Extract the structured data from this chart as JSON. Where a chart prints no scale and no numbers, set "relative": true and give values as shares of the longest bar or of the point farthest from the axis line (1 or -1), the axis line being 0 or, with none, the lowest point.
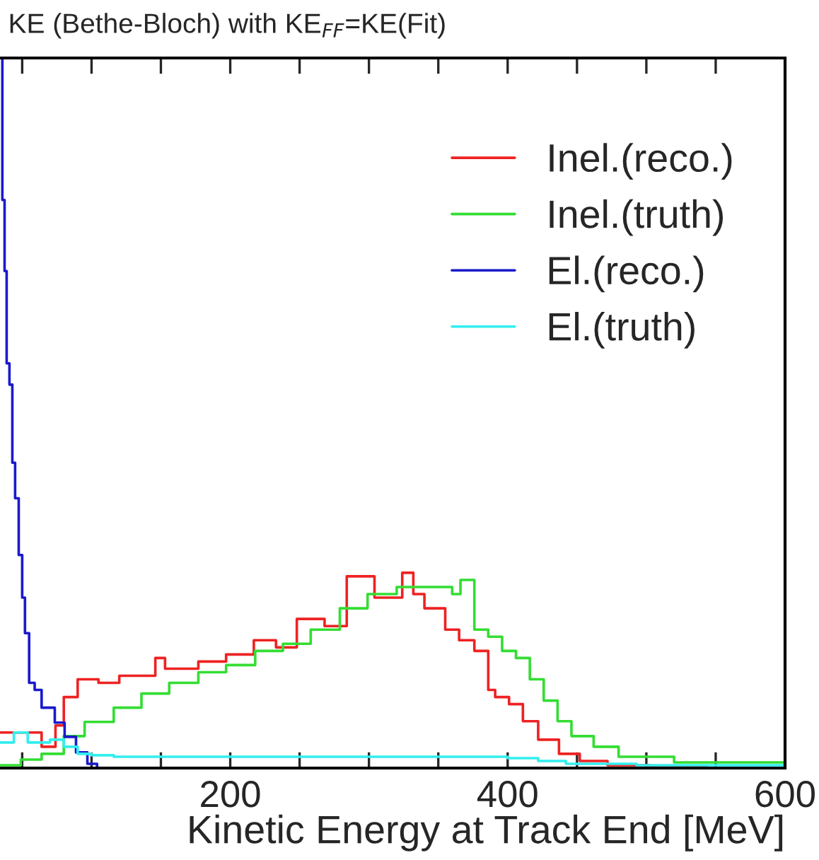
{
  "chart_data": {
    "type": "step",
    "title": "KE (Bethe-Bloch) with KE$_{FF}$=KE(Fit)",
    "xlabel": "Kinetic Energy at Track End [MeV]",
    "relative": true,
    "legend": "top right",
    "grid": false,
    "xlim": [
      34,
      600
    ],
    "xticks": [
      {
        "value": 50,
        "label": null
      },
      {
        "value": 100,
        "label": null
      },
      {
        "value": 150,
        "label": null
      },
      200,
      {
        "value": 250,
        "label": null
      },
      {
        "value": 300,
        "label": null
      },
      {
        "value": 350,
        "label": null
      },
      400,
      {
        "value": 450,
        "label": null
      },
      {
        "value": 500,
        "label": null
      },
      {
        "value": 550,
        "label": null
      },
      600
    ],
    "series": [
      {
        "name": "Inel.(reco.)",
        "color": "#ee2222",
        "x": [
          34,
          64,
          74,
          80,
          90,
          105,
          120,
          146,
          153,
          177,
          197,
          217,
          233,
          248,
          268,
          284,
          304,
          324,
          332,
          340,
          355,
          365,
          376,
          386,
          391,
          401,
          411,
          422,
          437,
          452,
          472,
          503,
          544,
          600
        ],
        "values": [
          0.05,
          0.03,
          0.06,
          0.1,
          0.125,
          0.12,
          0.13,
          0.155,
          0.14,
          0.15,
          0.16,
          0.18,
          0.17,
          0.21,
          0.2,
          0.27,
          0.24,
          0.275,
          0.245,
          0.225,
          0.195,
          0.18,
          0.165,
          0.11,
          0.1,
          0.09,
          0.066,
          0.04,
          0.02,
          0.01,
          0.004,
          0.002,
          0,
          0
        ]
      },
      {
        "name": "Inel.(truth)",
        "color": "#33dd33",
        "x": [
          34,
          49,
          64,
          80,
          95,
          116,
          136,
          156,
          177,
          197,
          218,
          238,
          258,
          279,
          299,
          320,
          340,
          360,
          366,
          376,
          386,
          396,
          406,
          416,
          426,
          436,
          446,
          462,
          480,
          520,
          600
        ],
        "values": [
          0.004,
          0.012,
          0.02,
          0.045,
          0.065,
          0.085,
          0.105,
          0.12,
          0.135,
          0.145,
          0.165,
          0.175,
          0.195,
          0.225,
          0.245,
          0.255,
          0.255,
          0.245,
          0.265,
          0.195,
          0.185,
          0.165,
          0.155,
          0.125,
          0.095,
          0.066,
          0.045,
          0.03,
          0.016,
          0.008,
          0
        ]
      },
      {
        "name": "El.(reco.)",
        "color": "#1a1acc",
        "x": [
          34,
          35.7,
          37.3,
          38.8,
          40.8,
          42.9,
          44.9,
          47.5,
          50,
          52,
          55,
          59,
          64,
          73.5,
          80.6,
          88.8,
          97,
          104,
          600
        ],
        "values": [
          1.0,
          0.8,
          0.7,
          0.57,
          0.54,
          0.43,
          0.38,
          0.3,
          0.24,
          0.19,
          0.12,
          0.11,
          0.085,
          0.064,
          0.044,
          0.022,
          0.006,
          0,
          0
        ]
      },
      {
        "name": "El.(truth)",
        "color": "#33eeee",
        "x": [
          34,
          44,
          54,
          70,
          80,
          90,
          100,
          116,
          300,
          370,
          400,
          422,
          442,
          493,
          600
        ],
        "values": [
          0.036,
          0.05,
          0.036,
          0.04,
          0.03,
          0.02,
          0.018,
          0.016,
          0.016,
          0.016,
          0.014,
          0.01,
          0.006,
          0.004,
          0
        ]
      }
    ]
  }
}
